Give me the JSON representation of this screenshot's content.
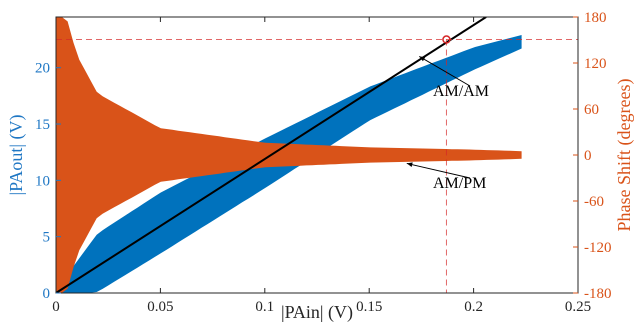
{
  "chart_data": {
    "type": "scatter",
    "xlabel": "|PAin| (V)",
    "ylabel_left": "|PAout| (V)",
    "ylabel_right": "Phase Shift (degrees)",
    "xlim": [
      0,
      0.25
    ],
    "ylim_left": [
      0,
      24.5
    ],
    "ylim_right": [
      -180,
      180
    ],
    "x_ticks": [
      0,
      0.05,
      0.1,
      0.15,
      0.2,
      0.25
    ],
    "x_tick_labels": [
      "0",
      "0.05",
      "0.1",
      "0.15",
      "0.2",
      "0.25"
    ],
    "y_left_ticks": [
      0,
      5,
      10,
      15,
      20
    ],
    "y_left_tick_labels": [
      "0",
      "5",
      "10",
      "15",
      "20"
    ],
    "y_right_ticks": [
      -180,
      -120,
      -60,
      0,
      60,
      120,
      180
    ],
    "y_right_tick_labels": [
      "-180",
      "-120",
      "-60",
      "0",
      "60",
      "120",
      "180"
    ],
    "grid": false,
    "colors": {
      "am_am": "#0072bd",
      "am_pm": "#d95319",
      "fit": "#000000",
      "marker": "#d62728",
      "axis_left": "#1f77c4",
      "axis_right": "#d95319"
    },
    "series": [
      {
        "name": "AM/AM",
        "axis": "left",
        "envelope": {
          "x": [
            0,
            0.02,
            0.05,
            0.1,
            0.15,
            0.2,
            0.223
          ],
          "y_center": [
            0,
            2.7,
            6.2,
            11.5,
            16.8,
            20.8,
            22.3
          ],
          "y_spread": [
            0.3,
            2.6,
            2.7,
            2.2,
            1.5,
            1.0,
            0.6
          ]
        }
      },
      {
        "name": "AM/PM",
        "axis": "right",
        "envelope": {
          "x": [
            0,
            0.005,
            0.01,
            0.02,
            0.05,
            0.1,
            0.15,
            0.2,
            0.223
          ],
          "y_center": [
            0,
            0,
            0,
            0,
            0,
            0,
            0,
            0,
            0
          ],
          "y_spread": [
            180,
            180,
            130,
            80,
            35,
            16,
            10,
            7,
            5
          ]
        }
      },
      {
        "name": "linear_gain",
        "axis": "left",
        "kind": "line",
        "x": [
          0,
          0.206
        ],
        "y": [
          0,
          24.5
        ]
      }
    ],
    "marker_point": {
      "x": 0.187,
      "y": 22.5
    },
    "annotations": [
      {
        "text": "AM/AM",
        "arrow_to": {
          "x": 0.174,
          "y": 21.0
        }
      },
      {
        "text": "AM/PM",
        "arrow_to": {
          "x": 0.168,
          "y": 11.5
        }
      }
    ]
  }
}
